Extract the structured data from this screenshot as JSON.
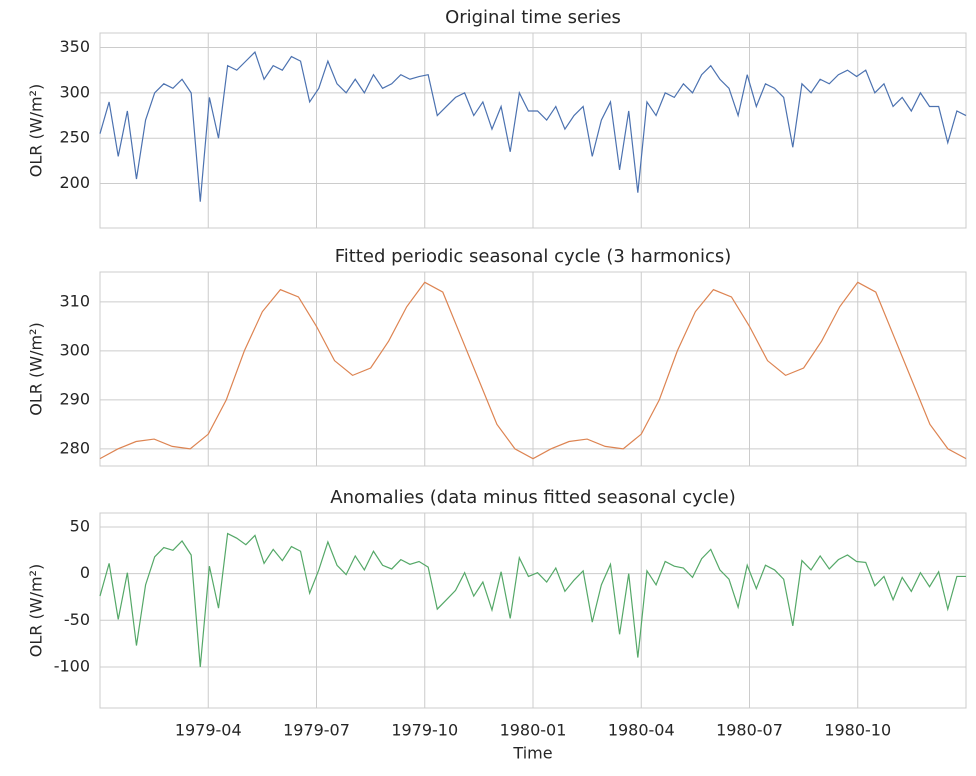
{
  "chart_data": [
    {
      "type": "line",
      "title": "Original time series",
      "ylabel": "OLR (W/m²)",
      "ylim": [
        151,
        366
      ],
      "yticks": [
        200,
        250,
        300,
        350
      ],
      "xlim": [
        "1979-01",
        "1981-01"
      ],
      "xticks": [
        "1979-04",
        "1979-07",
        "1979-10",
        "1980-01",
        "1980-04",
        "1980-07",
        "1980-10"
      ],
      "grid": true,
      "series": [
        {
          "name": "Original",
          "color": "#4c72b0",
          "values": [
            255,
            290,
            230,
            280,
            205,
            270,
            300,
            310,
            305,
            315,
            300,
            180,
            295,
            250,
            330,
            325,
            335,
            345,
            315,
            330,
            325,
            340,
            335,
            290,
            305,
            335,
            310,
            300,
            315,
            300,
            320,
            305,
            310,
            320,
            315,
            318,
            320,
            275,
            285,
            295,
            300,
            275,
            290,
            260,
            285,
            235,
            300,
            280,
            280,
            270,
            285,
            260,
            275,
            285,
            230,
            270,
            290,
            215,
            280,
            190,
            290,
            275,
            300,
            295,
            310,
            300,
            320,
            330,
            315,
            305,
            275,
            320,
            285,
            310,
            305,
            295,
            240,
            310,
            300,
            315,
            310,
            320,
            325,
            318,
            325,
            300,
            310,
            285,
            295,
            280,
            300,
            285,
            285,
            245,
            280,
            275
          ]
        }
      ]
    },
    {
      "type": "line",
      "title": "Fitted periodic seasonal cycle (3 harmonics)",
      "ylabel": "OLR (W/m²)",
      "ylim": [
        276.5,
        316.1
      ],
      "yticks": [
        280,
        290,
        300,
        310
      ],
      "xlim": [
        "1979-01",
        "1981-01"
      ],
      "xticks": [
        "1979-04",
        "1979-07",
        "1979-10",
        "1980-01",
        "1980-04",
        "1980-07",
        "1980-10"
      ],
      "grid": true,
      "series": [
        {
          "name": "Seasonal cycle",
          "color": "#dd8452",
          "values": [
            278,
            280,
            281.5,
            282,
            280.5,
            280,
            283,
            290,
            300,
            308,
            312.5,
            311,
            305,
            298,
            295,
            296.5,
            302,
            309,
            314,
            312,
            303,
            294,
            285,
            280,
            278,
            280,
            281.5,
            282,
            280.5,
            280,
            283,
            290,
            300,
            308,
            312.5,
            311,
            305,
            298,
            295,
            296.5,
            302,
            309,
            314,
            312,
            303,
            294,
            285,
            280,
            278
          ]
        }
      ]
    },
    {
      "type": "line",
      "title": "Anomalies (data minus fitted seasonal cycle)",
      "ylabel": "OLR (W/m²)",
      "xlabel": "Time",
      "ylim": [
        -144,
        65
      ],
      "yticks": [
        -100,
        -50,
        0,
        50
      ],
      "xlim": [
        "1979-01",
        "1981-01"
      ],
      "xticks": [
        "1979-04",
        "1979-07",
        "1979-10",
        "1980-01",
        "1980-04",
        "1980-07",
        "1980-10"
      ],
      "grid": true,
      "series": [
        {
          "name": "Anomalies",
          "color": "#55a868",
          "values": [
            -24,
            11,
            -49,
            1,
            -77,
            -12,
            18,
            28,
            25,
            35,
            20,
            -100,
            8,
            -37,
            43,
            38,
            31,
            41,
            11,
            26,
            14,
            29,
            24,
            -21,
            4,
            34,
            9,
            -1,
            19,
            4,
            24,
            9,
            5,
            15,
            10,
            13,
            7,
            -38,
            -28,
            -18,
            1,
            -24,
            -9,
            -39,
            2,
            -48,
            17,
            -3,
            1,
            -9,
            6,
            -19,
            -7,
            3,
            -52,
            -12,
            10,
            -65,
            0,
            -90,
            3,
            -12,
            13,
            8,
            6,
            -4,
            16,
            26,
            4,
            -6,
            -36,
            9,
            -16,
            9,
            4,
            -6,
            -56,
            14,
            4,
            19,
            5,
            15,
            20,
            13,
            12,
            -13,
            -3,
            -28,
            -4,
            -19,
            1,
            -14,
            2,
            -38,
            -3,
            -3
          ]
        }
      ]
    }
  ]
}
